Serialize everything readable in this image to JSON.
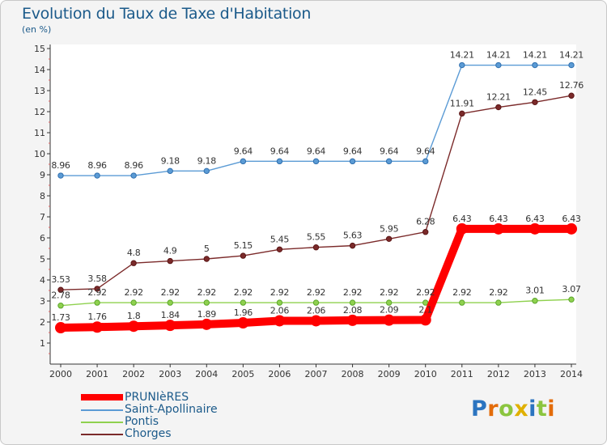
{
  "title": "Evolution du Taux de Taxe d'Habitation",
  "unit_label": "(en %)",
  "logo_text": "Proxiti",
  "chart_data": {
    "type": "line",
    "x": [
      "2000",
      "2001",
      "2002",
      "2003",
      "2004",
      "2005",
      "2006",
      "2007",
      "2008",
      "2009",
      "2010",
      "2011",
      "2012",
      "2013",
      "2014"
    ],
    "ylim": [
      0,
      15
    ],
    "yticks": [
      1,
      2,
      3,
      4,
      5,
      6,
      7,
      8,
      9,
      10,
      11,
      12,
      13,
      14,
      15
    ],
    "ytick_labels": [
      "1",
      "2",
      "3",
      "4",
      "5",
      "6",
      "7",
      "8",
      "9",
      "10",
      "11",
      "12",
      "13",
      "14",
      "15"
    ],
    "grid": false,
    "legend_position": "bottom-left",
    "series": [
      {
        "name": "PRUNIèRES",
        "color": "#ff0000",
        "values": [
          1.73,
          1.76,
          1.8,
          1.84,
          1.89,
          1.96,
          2.06,
          2.06,
          2.08,
          2.09,
          2.1,
          6.43,
          6.43,
          6.43,
          6.43
        ],
        "labels": [
          "1.73",
          "1.76",
          "1.8",
          "1.84",
          "1.89",
          "1.96",
          "2.06",
          "2.06",
          "2.08",
          "2.09",
          "2.1",
          "6.43",
          "6.43",
          "6.43",
          "6.43"
        ]
      },
      {
        "name": "Saint-Apollinaire",
        "color": "#5b9bd5",
        "values": [
          8.96,
          8.96,
          8.96,
          9.18,
          9.18,
          9.64,
          9.64,
          9.64,
          9.64,
          9.64,
          9.64,
          14.21,
          14.21,
          14.21,
          14.21
        ],
        "labels": [
          "8.96",
          "8.96",
          "8.96",
          "9.18",
          "9.18",
          "9.64",
          "9.64",
          "9.64",
          "9.64",
          "9.64",
          "9.64",
          "14.21",
          "14.21",
          "14.21",
          "14.21"
        ]
      },
      {
        "name": "Pontis",
        "color": "#8fd14f",
        "values": [
          2.78,
          2.92,
          2.92,
          2.92,
          2.92,
          2.92,
          2.92,
          2.92,
          2.92,
          2.92,
          2.92,
          2.92,
          2.92,
          3.01,
          3.07
        ],
        "labels": [
          "2.78",
          "2.92",
          "2.92",
          "2.92",
          "2.92",
          "2.92",
          "2.92",
          "2.92",
          "2.92",
          "2.92",
          "2.92",
          "2.92",
          "2.92",
          "3.01",
          "3.07"
        ]
      },
      {
        "name": "Chorges",
        "color": "#7b2a2a",
        "values": [
          3.53,
          3.58,
          4.8,
          4.9,
          5,
          5.15,
          5.45,
          5.55,
          5.63,
          5.95,
          6.28,
          11.91,
          12.21,
          12.45,
          12.76
        ],
        "labels": [
          "3.53",
          "3.58",
          "4.8",
          "4.9",
          "5",
          "5.15",
          "5.45",
          "5.55",
          "5.63",
          "5.95",
          "6.28",
          "11.91",
          "12.21",
          "12.45",
          "12.76"
        ]
      }
    ]
  }
}
